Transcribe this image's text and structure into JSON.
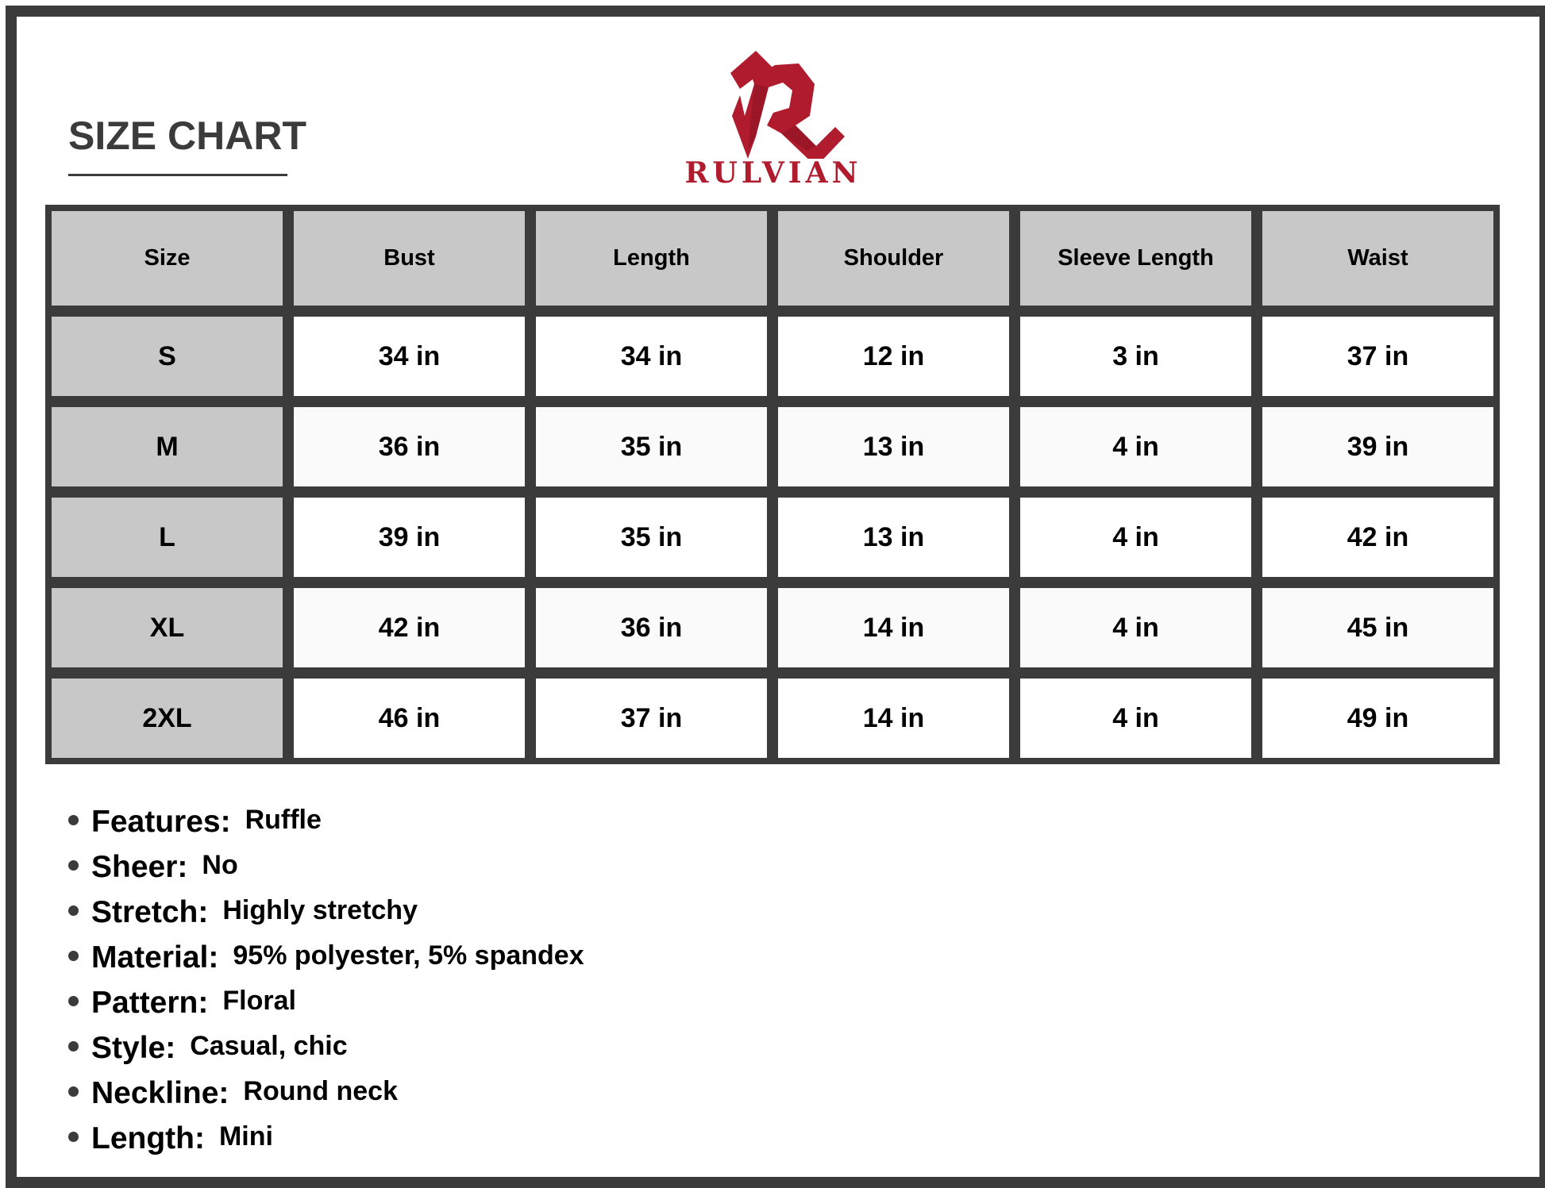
{
  "title": "SIZE CHART",
  "brand": {
    "name": "RULVIAN",
    "color": "#b01c2e"
  },
  "table": {
    "headers": [
      "Size",
      "Bust",
      "Length",
      "Shoulder",
      "Sleeve Length",
      "Waist"
    ],
    "rows": [
      [
        "S",
        "34 in",
        "34 in",
        "12 in",
        "3 in",
        "37 in"
      ],
      [
        "M",
        "36 in",
        "35 in",
        "13 in",
        "4 in",
        "39 in"
      ],
      [
        "L",
        "39 in",
        "35 in",
        "13 in",
        "4 in",
        "42 in"
      ],
      [
        "XL",
        "42 in",
        "36 in",
        "14 in",
        "4 in",
        "45 in"
      ],
      [
        "2XL",
        "46 in",
        "37 in",
        "14 in",
        "4 in",
        "49 in"
      ]
    ]
  },
  "features": [
    {
      "label": "Features:",
      "value": "Ruffle"
    },
    {
      "label": "Sheer:",
      "value": "No"
    },
    {
      "label": "Stretch:",
      "value": "Highly stretchy"
    },
    {
      "label": "Material:",
      "value": "95% polyester, 5% spandex"
    },
    {
      "label": "Pattern:",
      "value": "Floral"
    },
    {
      "label": "Style:",
      "value": "Casual, chic"
    },
    {
      "label": "Neckline:",
      "value": "Round neck"
    },
    {
      "label": "Length:",
      "value": "Mini"
    }
  ]
}
